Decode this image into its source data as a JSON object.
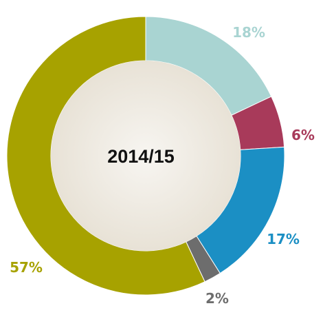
{
  "chart_data": {
    "type": "pie",
    "variant": "donut",
    "title": "2014/15",
    "slices": [
      {
        "value": 18,
        "label": "18%",
        "color": "#a9d4d2"
      },
      {
        "value": 6,
        "label": "6%",
        "color": "#a83a5a"
      },
      {
        "value": 17,
        "label": "17%",
        "color": "#1b8fc4"
      },
      {
        "value": 2,
        "label": "2%",
        "color": "#6d6d6d"
      },
      {
        "value": 57,
        "label": "57%",
        "color": "#a7a200"
      }
    ],
    "center_fill": "#ebe6dc"
  }
}
